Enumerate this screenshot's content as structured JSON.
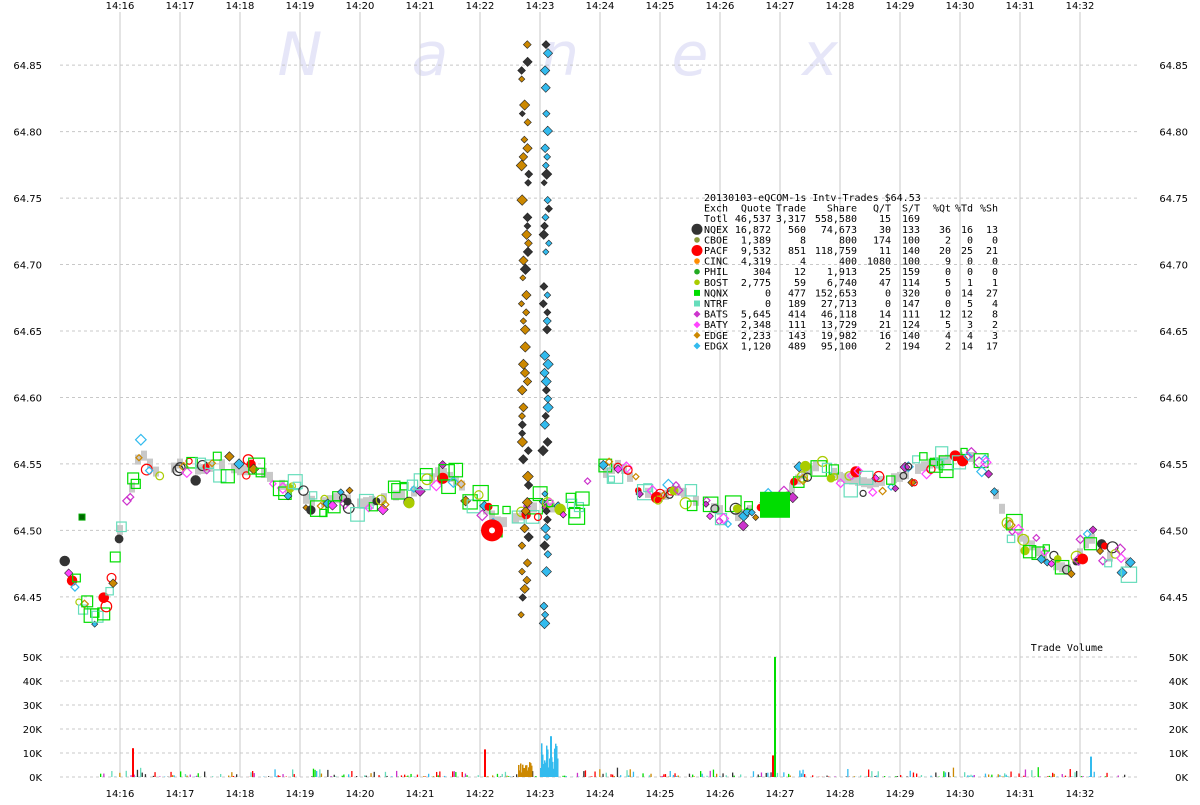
{
  "chart_data": [
    {
      "type": "scatter",
      "title": "20130103-eQCOM-1s Intv-Trades $64.53",
      "watermark": "Nanex",
      "x_ticks": [
        "14:16",
        "14:17",
        "14:18",
        "14:19",
        "14:20",
        "14:21",
        "14:22",
        "14:23",
        "14:24",
        "14:25",
        "14:26",
        "14:27",
        "14:28",
        "14:29",
        "14:30",
        "14:31",
        "14:32"
      ],
      "x_range": [
        "14:15:00",
        "14:33:00"
      ],
      "y_ticks": [
        "64.45",
        "64.50",
        "64.55",
        "64.60",
        "64.65",
        "64.70",
        "64.75",
        "64.80",
        "64.85"
      ],
      "ylim": [
        64.41,
        64.89
      ],
      "grid": true,
      "legend": {
        "placement": "inside-top-right",
        "header": [
          "Exch",
          "Quote",
          "Trade",
          "Share",
          "Q/T",
          "S/T",
          "%Qt",
          "%Td",
          "%Sh"
        ],
        "total_row": [
          "Totl",
          "46,537",
          "3,317",
          "558,580",
          "15",
          "169",
          "",
          "",
          ""
        ],
        "rows": [
          {
            "exch": "NQEX",
            "quote": "16,872",
            "trade": "560",
            "share": "74,673",
            "qt": "30",
            "st": "133",
            "pqt": "36",
            "ptd": "16",
            "psh": "13",
            "color": "#333333",
            "marker": "circle-large"
          },
          {
            "exch": "CBOE",
            "quote": "1,389",
            "trade": "8",
            "share": "800",
            "qt": "174",
            "st": "100",
            "pqt": "2",
            "ptd": "0",
            "psh": "0",
            "color": "#8b9a3a",
            "marker": "circle"
          },
          {
            "exch": "PACF",
            "quote": "9,532",
            "trade": "851",
            "share": "118,759",
            "qt": "11",
            "st": "140",
            "pqt": "20",
            "ptd": "25",
            "psh": "21",
            "color": "#ff0000",
            "marker": "circle-large"
          },
          {
            "exch": "CINC",
            "quote": "4,319",
            "trade": "4",
            "share": "400",
            "qt": "1080",
            "st": "100",
            "pqt": "9",
            "ptd": "0",
            "psh": "0",
            "color": "#ff8c00",
            "marker": "circle"
          },
          {
            "exch": "PHIL",
            "quote": "304",
            "trade": "12",
            "share": "1,913",
            "qt": "25",
            "st": "159",
            "pqt": "0",
            "ptd": "0",
            "psh": "0",
            "color": "#22aa22",
            "marker": "circle"
          },
          {
            "exch": "BOST",
            "quote": "2,775",
            "trade": "59",
            "share": "6,740",
            "qt": "47",
            "st": "114",
            "pqt": "5",
            "ptd": "1",
            "psh": "1",
            "color": "#aacc00",
            "marker": "circle"
          },
          {
            "exch": "NQNX",
            "quote": "0",
            "trade": "477",
            "share": "152,653",
            "qt": "0",
            "st": "320",
            "pqt": "0",
            "ptd": "14",
            "psh": "27",
            "color": "#00dd00",
            "marker": "square"
          },
          {
            "exch": "NTRF",
            "quote": "0",
            "trade": "189",
            "share": "27,713",
            "qt": "0",
            "st": "147",
            "pqt": "0",
            "ptd": "5",
            "psh": "4",
            "color": "#66ddbb",
            "marker": "square"
          },
          {
            "exch": "BATS",
            "quote": "5,645",
            "trade": "414",
            "share": "46,118",
            "qt": "14",
            "st": "111",
            "pqt": "12",
            "ptd": "12",
            "psh": "8",
            "color": "#cc33cc",
            "marker": "diamond"
          },
          {
            "exch": "BATY",
            "quote": "2,348",
            "trade": "111",
            "share": "13,729",
            "qt": "21",
            "st": "124",
            "pqt": "5",
            "ptd": "3",
            "psh": "2",
            "color": "#ff44ff",
            "marker": "diamond"
          },
          {
            "exch": "EDGE",
            "quote": "2,233",
            "trade": "143",
            "share": "19,982",
            "qt": "16",
            "st": "140",
            "pqt": "4",
            "ptd": "4",
            "psh": "3",
            "color": "#cc8800",
            "marker": "diamond"
          },
          {
            "exch": "EDGX",
            "quote": "1,120",
            "trade": "489",
            "share": "95,100",
            "qt": "2",
            "st": "194",
            "pqt": "2",
            "ptd": "14",
            "psh": "17",
            "color": "#33bbee",
            "marker": "diamond"
          }
        ]
      },
      "price_path": [
        [
          "14:15:05",
          64.47
        ],
        [
          "14:15:20",
          64.45
        ],
        [
          "14:15:30",
          64.435
        ],
        [
          "14:15:40",
          64.44
        ],
        [
          "14:15:50",
          64.45
        ],
        [
          "14:16:00",
          64.5
        ],
        [
          "14:16:10",
          64.525
        ],
        [
          "14:16:20",
          64.56
        ],
        [
          "14:16:40",
          64.54
        ],
        [
          "14:17:00",
          64.55
        ],
        [
          "14:17:20",
          64.545
        ],
        [
          "14:17:40",
          64.55
        ],
        [
          "14:18:00",
          64.545
        ],
        [
          "14:18:20",
          64.545
        ],
        [
          "14:18:40",
          64.535
        ],
        [
          "14:19:00",
          64.525
        ],
        [
          "14:19:20",
          64.52
        ],
        [
          "14:19:40",
          64.525
        ],
        [
          "14:20:00",
          64.52
        ],
        [
          "14:20:30",
          64.525
        ],
        [
          "14:21:00",
          64.53
        ],
        [
          "14:21:20",
          64.545
        ],
        [
          "14:21:40",
          64.535
        ],
        [
          "14:22:00",
          64.52
        ],
        [
          "14:22:20",
          64.505
        ],
        [
          "14:22:40",
          64.51
        ],
        [
          "14:23:00",
          64.52
        ],
        [
          "14:23:20",
          64.515
        ],
        [
          "14:23:40",
          64.52
        ],
        [
          "14:24:00",
          64.54
        ],
        [
          "14:24:20",
          64.55
        ],
        [
          "14:24:40",
          64.53
        ],
        [
          "14:25:00",
          64.525
        ],
        [
          "14:25:20",
          64.53
        ],
        [
          "14:25:40",
          64.52
        ],
        [
          "14:26:00",
          64.515
        ],
        [
          "14:26:20",
          64.51
        ],
        [
          "14:26:40",
          64.52
        ],
        [
          "14:27:00",
          64.52
        ],
        [
          "14:27:20",
          64.54
        ],
        [
          "14:27:40",
          64.55
        ],
        [
          "14:28:00",
          64.54
        ],
        [
          "14:28:30",
          64.535
        ],
        [
          "14:29:00",
          64.54
        ],
        [
          "14:29:30",
          64.55
        ],
        [
          "14:30:00",
          64.555
        ],
        [
          "14:30:20",
          64.555
        ],
        [
          "14:30:40",
          64.52
        ],
        [
          "14:30:50",
          64.5
        ],
        [
          "14:31:10",
          64.49
        ],
        [
          "14:31:30",
          64.475
        ],
        [
          "14:31:50",
          64.47
        ],
        [
          "14:32:10",
          64.495
        ],
        [
          "14:32:30",
          64.48
        ],
        [
          "14:32:50",
          64.475
        ]
      ],
      "spike_edge": {
        "time": "14:22:45",
        "low": 64.43,
        "high": 64.87
      },
      "spike_edgx": {
        "time": "14:23:06",
        "low": 64.43,
        "high": 64.87
      },
      "notable_trades": [
        {
          "time": "14:22:12",
          "price": 64.5,
          "exch": "PACF",
          "size": "large"
        },
        {
          "time": "14:15:22",
          "price": 64.51,
          "exch": "NQEX",
          "size": "small"
        },
        {
          "time": "14:26:55",
          "price": 64.52,
          "exch": "NQNX",
          "size": "large"
        }
      ]
    },
    {
      "type": "bar",
      "title": "Trade Volume",
      "y_ticks": [
        "0K",
        "10K",
        "20K",
        "30K",
        "40K",
        "50K"
      ],
      "ylim": [
        0,
        50000
      ],
      "x_ticks": [
        "14:16",
        "14:17",
        "14:18",
        "14:19",
        "14:20",
        "14:21",
        "14:22",
        "14:23",
        "14:24",
        "14:25",
        "14:26",
        "14:27",
        "14:28",
        "14:29",
        "14:30",
        "14:31",
        "14:32"
      ],
      "notable_bars": [
        {
          "time": "14:26:54",
          "value": 50000,
          "color": "#00dd00"
        },
        {
          "time": "14:16:12",
          "value": 12000,
          "color": "#ff0000"
        },
        {
          "time": "14:22:04",
          "value": 11500,
          "color": "#ff0000"
        },
        {
          "time": "14:23:10",
          "value": 17000,
          "color": "#33bbee"
        },
        {
          "time": "14:26:52",
          "value": 9000,
          "color": "#ff0000"
        },
        {
          "time": "14:32:10",
          "value": 8500,
          "color": "#33bbee"
        }
      ]
    }
  ]
}
